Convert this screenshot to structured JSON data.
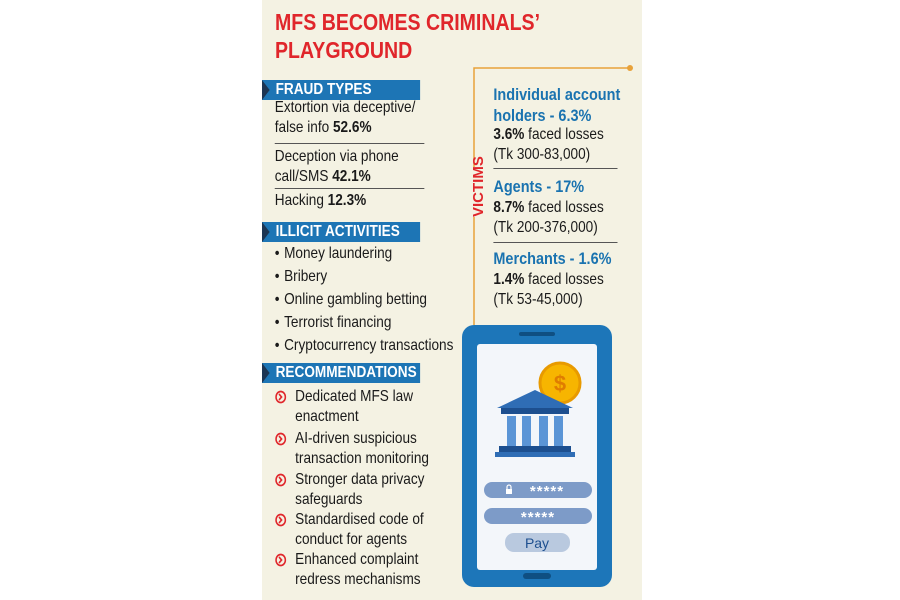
{
  "header": {
    "title": "MFS BECOMES CRIMINALS’ PLAYGROUND"
  },
  "fraud_types": {
    "heading": "FRAUD TYPES",
    "items": [
      {
        "text": "Extortion via deceptive/ false info",
        "percent": "52.6%"
      },
      {
        "text": "Deception via phone call/SMS",
        "percent": "42.1%"
      },
      {
        "text": "Hacking",
        "percent": "12.3%"
      }
    ]
  },
  "illicit_activities": {
    "heading": "ILLICIT ACTIVITIES",
    "items": [
      "Money laundering",
      "Bribery",
      "Online gambling betting",
      "Terrorist financing",
      "Cryptocurrency transactions"
    ]
  },
  "recommendations": {
    "heading": "RECOMMENDATIONS",
    "items": [
      "Dedicated MFS law enactment",
      "AI-driven suspicious transaction monitoring",
      "Stronger data privacy safeguards",
      "Standardised code of conduct for agents",
      "Enhanced complaint redress mechanisms"
    ]
  },
  "victims": {
    "label": "VICTIMS",
    "groups": [
      {
        "title": "Individual account holders - 6.3%",
        "loss_percent": "3.6%",
        "loss_text": "faced losses",
        "range": "(Tk 300-83,000)"
      },
      {
        "title": "Agents - 17%",
        "loss_percent": "8.7%",
        "loss_text": "faced losses",
        "range": "(Tk 200-376,000)"
      },
      {
        "title": "Merchants - 1.6%",
        "loss_percent": "1.4%",
        "loss_text": "faced losses",
        "range": "(Tk 53-45,000)"
      }
    ]
  },
  "phone": {
    "coin": "$",
    "fields": [
      "*****",
      "*****"
    ],
    "button": "Pay"
  }
}
